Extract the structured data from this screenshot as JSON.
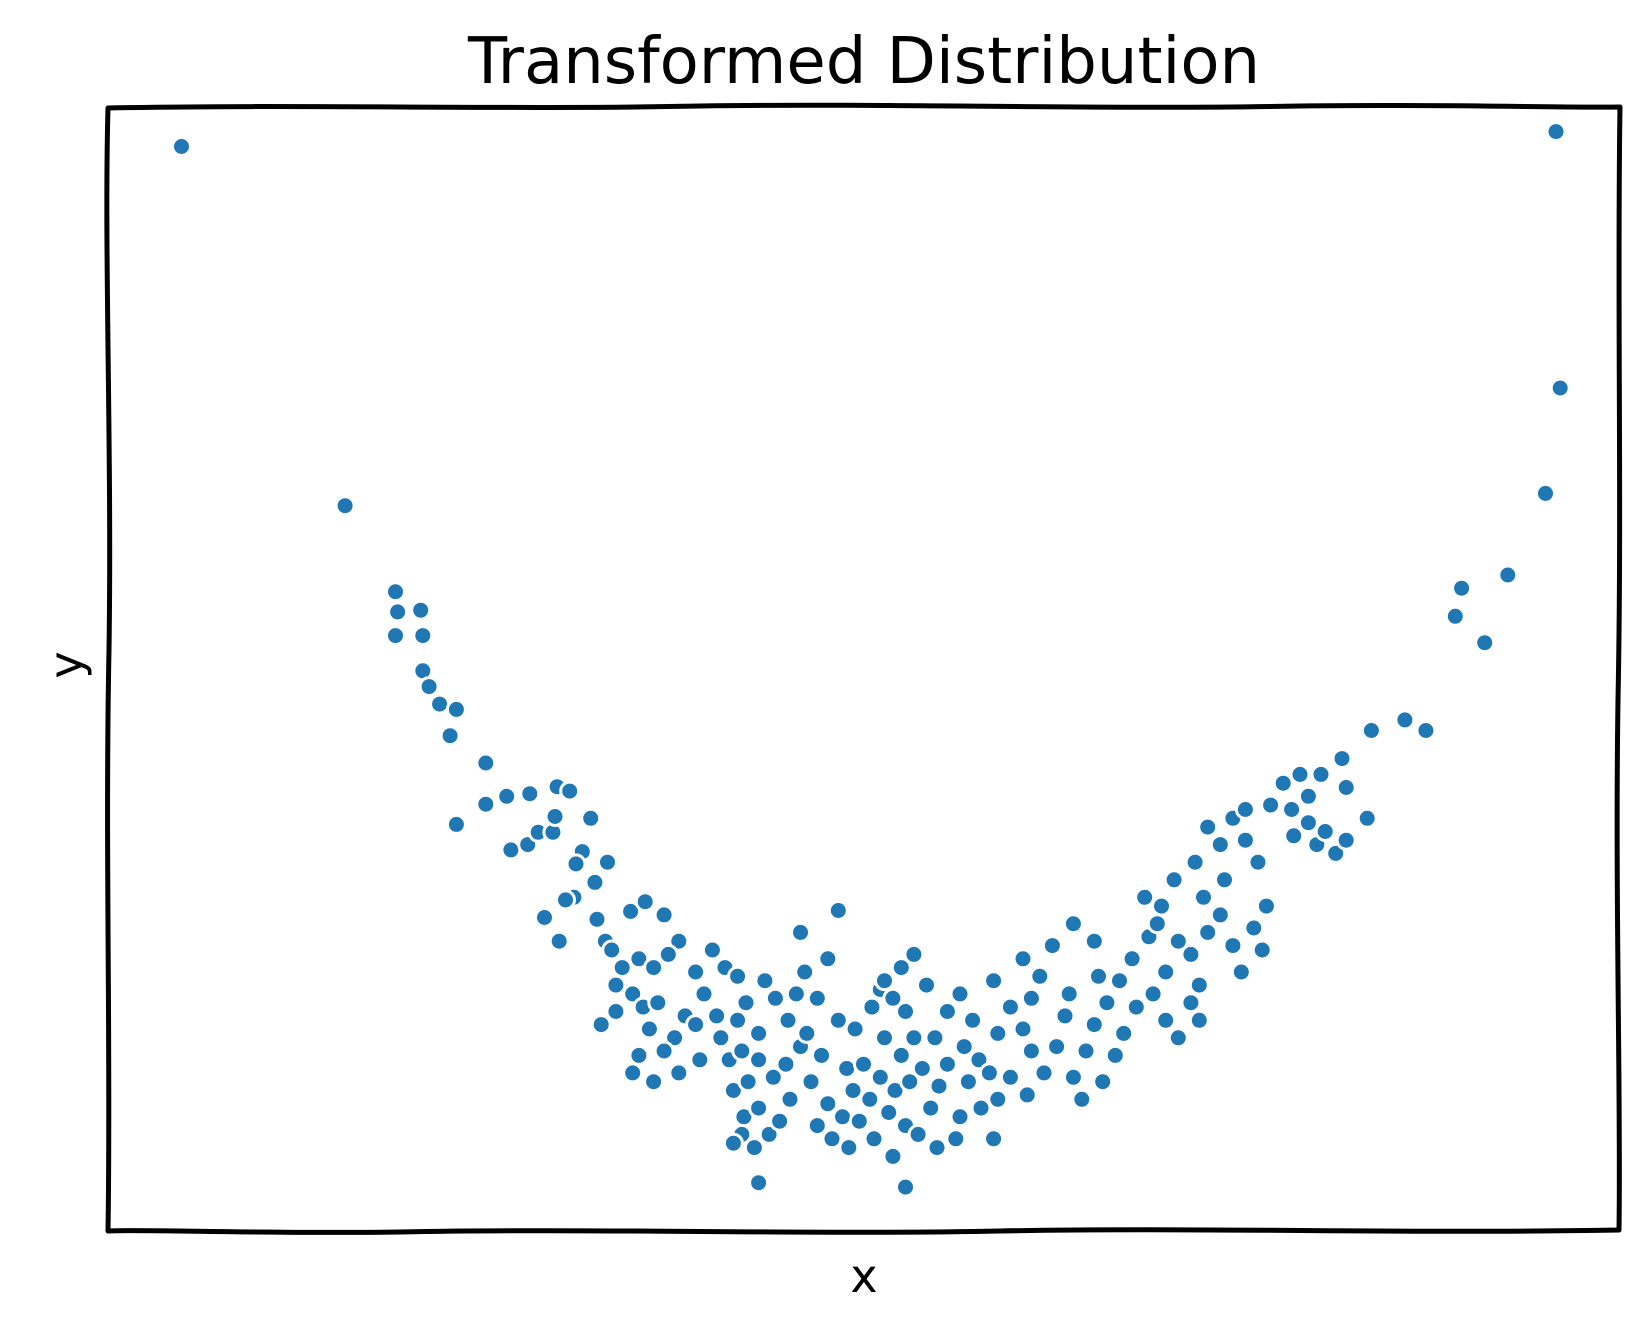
{
  "chart_data": {
    "type": "scatter",
    "title": "Transformed Distribution",
    "xlabel": "x",
    "ylabel": "y",
    "xlim": [
      -3.6,
      3.6
    ],
    "ylim": [
      -0.2,
      12.6
    ],
    "xticks": [],
    "yticks": [],
    "grid": false,
    "legend": "none",
    "colors": {
      "points": "#1f77b4",
      "frame": "#000000",
      "background": "#ffffff"
    },
    "series": [
      {
        "points": [
          [
            -3.25,
            12.15
          ],
          [
            3.3,
            12.32
          ],
          [
            -2.47,
            8.06
          ],
          [
            -2.23,
            7.08
          ],
          [
            -2.22,
            6.85
          ],
          [
            -2.11,
            6.87
          ],
          [
            -2.23,
            6.58
          ],
          [
            -2.1,
            6.58
          ],
          [
            -2.1,
            6.18
          ],
          [
            -2.07,
            6.0
          ],
          [
            -2.02,
            5.8
          ],
          [
            -1.97,
            5.44
          ],
          [
            -1.94,
            5.74
          ],
          [
            -1.8,
            5.13
          ],
          [
            -1.8,
            4.66
          ],
          [
            -1.7,
            4.75
          ],
          [
            -1.59,
            4.78
          ],
          [
            -1.68,
            4.14
          ],
          [
            -1.6,
            4.2
          ],
          [
            -1.55,
            4.34
          ],
          [
            -1.48,
            4.34
          ],
          [
            -1.47,
            4.52
          ],
          [
            -1.46,
            4.86
          ],
          [
            -1.4,
            4.81
          ],
          [
            -1.3,
            4.5
          ],
          [
            -1.34,
            4.12
          ],
          [
            -1.37,
            3.98
          ],
          [
            -1.38,
            3.6
          ],
          [
            -1.42,
            3.57
          ],
          [
            -1.52,
            3.37
          ],
          [
            -1.45,
            3.1
          ],
          [
            -1.28,
            3.77
          ],
          [
            -1.22,
            4.0
          ],
          [
            -1.27,
            3.35
          ],
          [
            -1.23,
            3.1
          ],
          [
            -1.11,
            3.44
          ],
          [
            -1.04,
            3.55
          ],
          [
            -0.95,
            3.4
          ],
          [
            -0.88,
            3.1
          ],
          [
            -1.2,
            3.0
          ],
          [
            -1.15,
            2.8
          ],
          [
            -1.07,
            2.9
          ],
          [
            -0.93,
            2.95
          ],
          [
            -0.8,
            2.75
          ],
          [
            -1.0,
            2.8
          ],
          [
            -1.18,
            2.6
          ],
          [
            -1.1,
            2.5
          ],
          [
            -1.05,
            2.35
          ],
          [
            -0.98,
            2.4
          ],
          [
            -0.85,
            2.25
          ],
          [
            -0.76,
            2.5
          ],
          [
            -1.02,
            2.1
          ],
          [
            -0.9,
            2.0
          ],
          [
            -0.8,
            2.15
          ],
          [
            -0.7,
            2.25
          ],
          [
            -1.07,
            1.8
          ],
          [
            -0.95,
            1.85
          ],
          [
            -1.1,
            1.6
          ],
          [
            -1.0,
            1.5
          ],
          [
            -0.88,
            1.6
          ],
          [
            -0.78,
            1.75
          ],
          [
            -1.25,
            2.15
          ],
          [
            -1.18,
            2.3
          ],
          [
            -0.72,
            3.0
          ],
          [
            -0.66,
            2.8
          ],
          [
            -0.6,
            2.7
          ],
          [
            -0.56,
            2.4
          ],
          [
            -0.6,
            2.2
          ],
          [
            -0.5,
            2.05
          ],
          [
            -0.68,
            2.0
          ],
          [
            -0.64,
            1.75
          ],
          [
            -0.58,
            1.85
          ],
          [
            -0.5,
            1.75
          ],
          [
            -0.62,
            1.4
          ],
          [
            -0.55,
            1.5
          ],
          [
            -0.57,
            1.1
          ],
          [
            -0.5,
            1.2
          ],
          [
            -0.58,
            0.9
          ],
          [
            -0.62,
            0.8
          ],
          [
            -0.52,
            0.75
          ],
          [
            -0.45,
            0.9
          ],
          [
            -0.4,
            1.05
          ],
          [
            -0.35,
            1.3
          ],
          [
            -0.43,
            1.55
          ],
          [
            -0.37,
            1.7
          ],
          [
            -0.3,
            1.9
          ],
          [
            -0.36,
            2.2
          ],
          [
            -0.42,
            2.45
          ],
          [
            -0.47,
            2.65
          ],
          [
            -0.32,
            2.5
          ],
          [
            -0.28,
            2.75
          ],
          [
            -0.22,
            2.45
          ],
          [
            -0.27,
            2.05
          ],
          [
            -0.2,
            1.8
          ],
          [
            -0.25,
            1.5
          ],
          [
            -0.17,
            1.25
          ],
          [
            -0.22,
            1.0
          ],
          [
            -0.15,
            0.85
          ],
          [
            -0.07,
            0.75
          ],
          [
            -0.1,
            1.1
          ],
          [
            -0.02,
            1.05
          ],
          [
            -0.05,
            1.4
          ],
          [
            0.03,
            1.3
          ],
          [
            -0.08,
            1.65
          ],
          [
            0.0,
            1.7
          ],
          [
            -0.12,
            2.2
          ],
          [
            -0.04,
            2.1
          ],
          [
            0.04,
            2.35
          ],
          [
            -0.17,
            2.9
          ],
          [
            -0.3,
            3.2
          ],
          [
            -0.12,
            3.45
          ],
          [
            0.08,
            2.55
          ],
          [
            0.14,
            2.45
          ],
          [
            0.2,
            2.3
          ],
          [
            0.1,
            2.0
          ],
          [
            0.18,
            1.8
          ],
          [
            0.24,
            2.0
          ],
          [
            0.08,
            1.55
          ],
          [
            0.15,
            1.4
          ],
          [
            0.22,
            1.5
          ],
          [
            0.28,
            1.65
          ],
          [
            0.12,
            1.15
          ],
          [
            0.2,
            1.0
          ],
          [
            0.05,
            0.85
          ],
          [
            0.14,
            0.65
          ],
          [
            0.26,
            0.9
          ],
          [
            0.32,
            1.2
          ],
          [
            0.36,
            1.45
          ],
          [
            0.4,
            1.7
          ],
          [
            0.34,
            2.0
          ],
          [
            0.4,
            2.3
          ],
          [
            0.3,
            2.6
          ],
          [
            0.18,
            2.8
          ],
          [
            0.1,
            2.65
          ],
          [
            0.24,
            2.95
          ],
          [
            0.46,
            2.5
          ],
          [
            0.52,
            2.2
          ],
          [
            0.48,
            1.9
          ],
          [
            0.55,
            1.75
          ],
          [
            0.5,
            1.5
          ],
          [
            0.56,
            1.2
          ],
          [
            0.46,
            1.1
          ],
          [
            0.44,
            0.85
          ],
          [
            0.35,
            0.75
          ],
          [
            0.62,
            0.85
          ],
          [
            0.64,
            1.3
          ],
          [
            0.6,
            1.6
          ],
          [
            0.64,
            2.05
          ],
          [
            0.7,
            2.35
          ],
          [
            0.62,
            2.65
          ],
          [
            0.76,
            2.9
          ],
          [
            0.84,
            2.7
          ],
          [
            0.8,
            2.45
          ],
          [
            0.76,
            2.1
          ],
          [
            0.8,
            1.85
          ],
          [
            0.7,
            1.55
          ],
          [
            0.78,
            1.35
          ],
          [
            0.86,
            1.6
          ],
          [
            0.92,
            1.9
          ],
          [
            0.96,
            2.25
          ],
          [
            0.98,
            2.5
          ],
          [
            0.9,
            3.05
          ],
          [
            1.0,
            3.3
          ],
          [
            1.1,
            3.1
          ],
          [
            1.12,
            2.7
          ],
          [
            1.16,
            2.4
          ],
          [
            1.1,
            2.15
          ],
          [
            1.06,
            1.85
          ],
          [
            1.0,
            1.55
          ],
          [
            1.04,
            1.3
          ],
          [
            1.14,
            1.5
          ],
          [
            1.2,
            1.8
          ],
          [
            1.24,
            2.05
          ],
          [
            1.3,
            2.35
          ],
          [
            1.22,
            2.65
          ],
          [
            1.28,
            2.9
          ],
          [
            1.36,
            3.15
          ],
          [
            1.34,
            3.6
          ],
          [
            1.42,
            3.5
          ],
          [
            1.48,
            3.8
          ],
          [
            1.4,
            3.3
          ],
          [
            1.5,
            3.1
          ],
          [
            1.44,
            2.75
          ],
          [
            1.38,
            2.5
          ],
          [
            1.44,
            2.2
          ],
          [
            1.5,
            2.0
          ],
          [
            1.56,
            2.4
          ],
          [
            1.6,
            2.6
          ],
          [
            1.56,
            2.95
          ],
          [
            1.64,
            3.2
          ],
          [
            1.62,
            3.6
          ],
          [
            1.72,
            3.8
          ],
          [
            1.7,
            3.4
          ],
          [
            1.76,
            3.05
          ],
          [
            1.8,
            2.75
          ],
          [
            1.86,
            3.25
          ],
          [
            1.92,
            3.5
          ],
          [
            1.88,
            4.0
          ],
          [
            1.82,
            4.25
          ],
          [
            1.76,
            4.5
          ],
          [
            1.94,
            4.65
          ],
          [
            1.7,
            4.2
          ],
          [
            1.64,
            4.4
          ],
          [
            1.58,
            4.0
          ],
          [
            1.6,
            2.2
          ],
          [
            1.82,
            4.6
          ],
          [
            1.9,
            3.0
          ],
          [
            2.04,
            4.6
          ],
          [
            2.0,
            4.9
          ],
          [
            2.08,
            5.0
          ],
          [
            2.12,
            4.75
          ],
          [
            2.18,
            5.0
          ],
          [
            2.16,
            4.2
          ],
          [
            2.05,
            4.3
          ],
          [
            2.12,
            4.45
          ],
          [
            2.2,
            4.35
          ],
          [
            2.25,
            4.1
          ],
          [
            2.3,
            4.25
          ],
          [
            2.28,
            5.18
          ],
          [
            2.3,
            4.85
          ],
          [
            2.4,
            4.5
          ],
          [
            2.42,
            5.5
          ],
          [
            2.58,
            5.62
          ],
          [
            2.68,
            5.5
          ],
          [
            2.82,
            6.8
          ],
          [
            2.85,
            7.12
          ],
          [
            2.96,
            6.5
          ],
          [
            3.07,
            7.27
          ],
          [
            3.25,
            8.2
          ],
          [
            3.32,
            9.4
          ],
          [
            -0.5,
            0.35
          ],
          [
            0.2,
            0.3
          ],
          [
            -1.94,
            4.43
          ]
        ]
      }
    ]
  }
}
